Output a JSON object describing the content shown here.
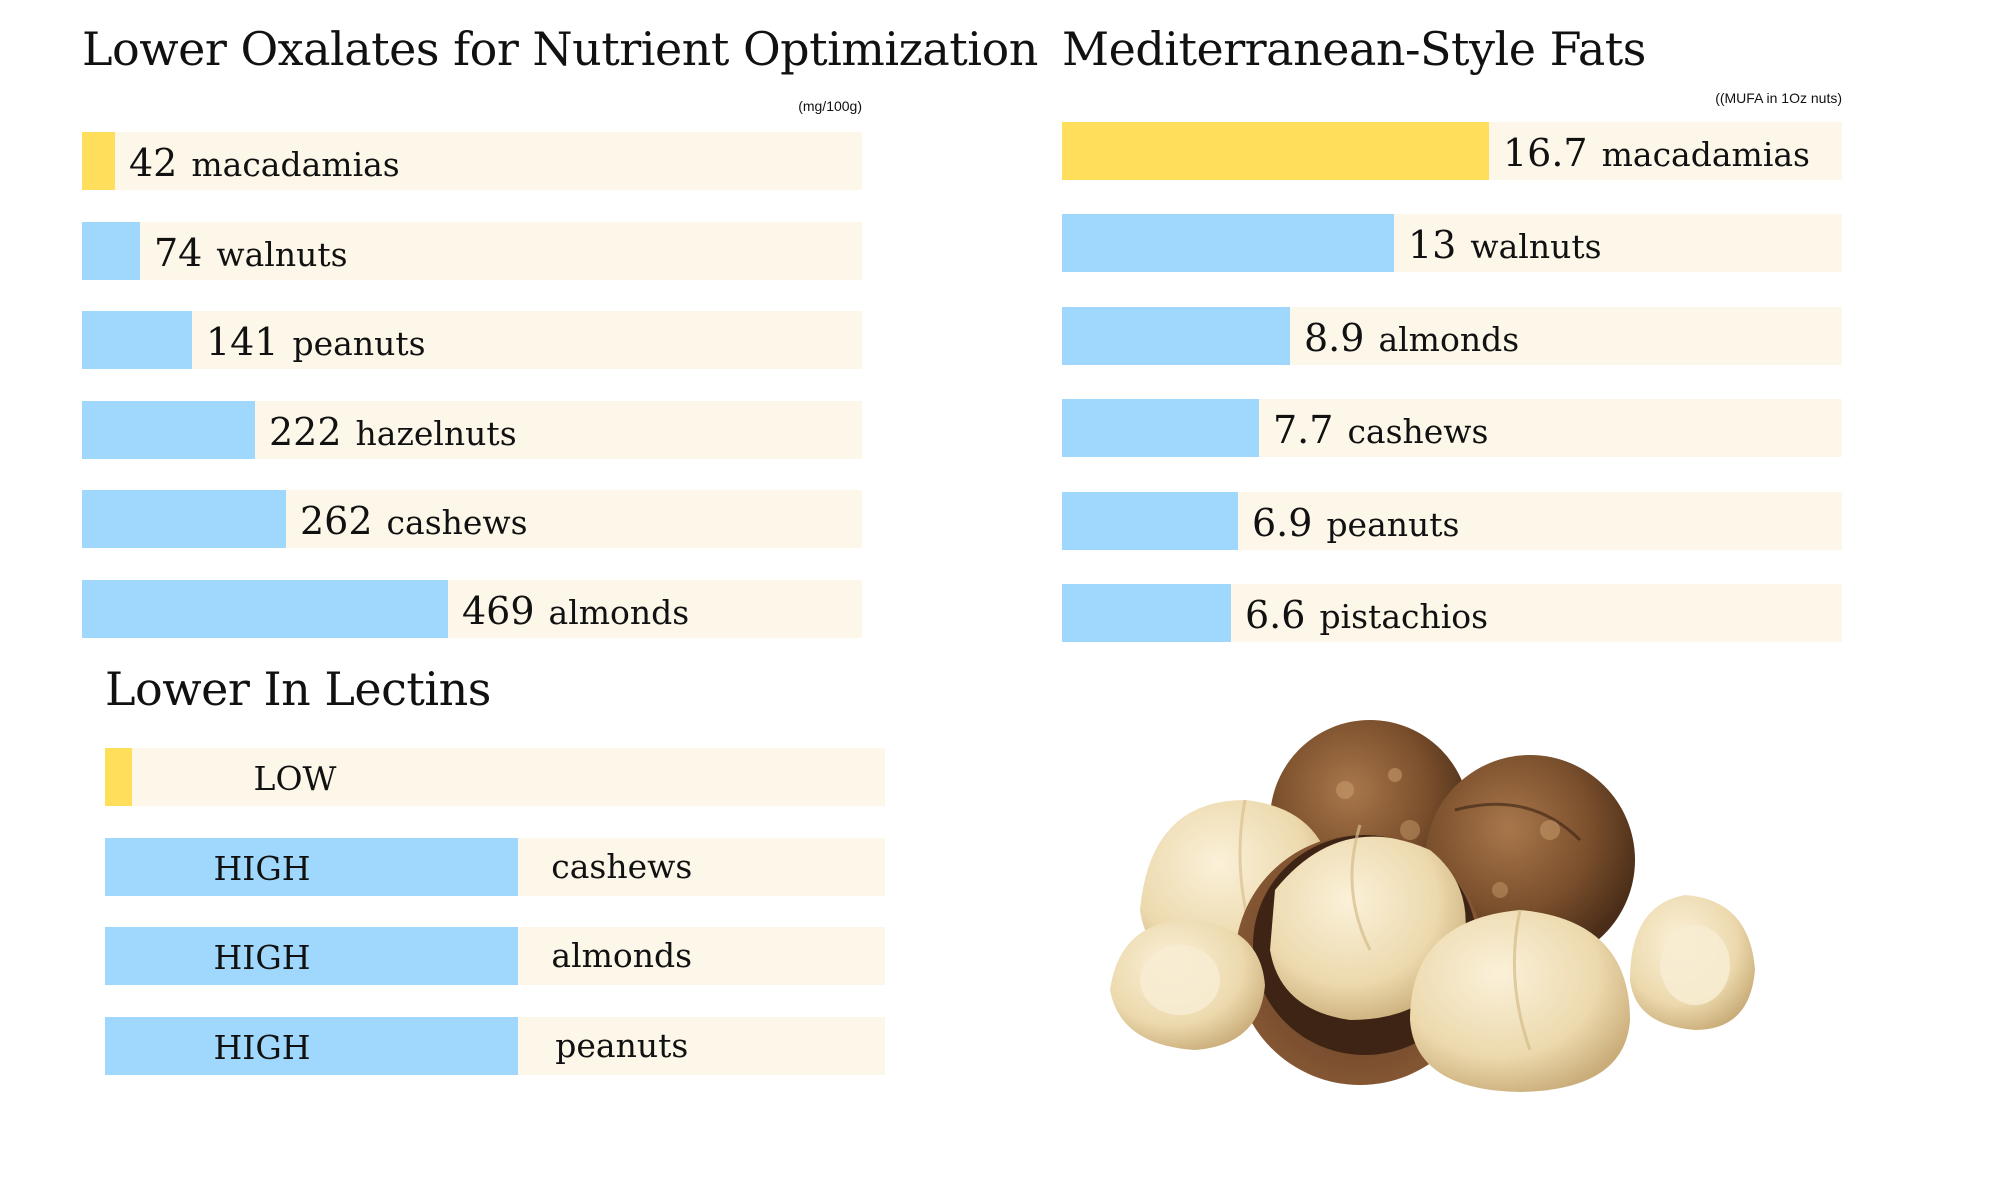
{
  "colors": {
    "highlight": "#ffde5c",
    "bar": "#a0d8fd",
    "track": "#fdf7ea"
  },
  "chart_data": [
    {
      "type": "bar",
      "title": "Lower Oxalates for Nutrient Optimization",
      "unit_label": "(mg/100g)",
      "categories": [
        "macadamias",
        "walnuts",
        "peanuts",
        "hazelnuts",
        "cashews",
        "almonds"
      ],
      "values": [
        42,
        74,
        141,
        222,
        262,
        469
      ],
      "value_labels": [
        "42",
        "74",
        "141",
        "222",
        "262",
        "469"
      ],
      "xlim": [
        0,
        1000
      ],
      "highlight_index": 0
    },
    {
      "type": "bar",
      "title": "Mediterranean-Style Fats",
      "unit_label": "((MUFA in 1Oz nuts)",
      "categories": [
        "macadamias",
        "walnuts",
        "almonds",
        "cashews",
        "peanuts",
        "pistachios"
      ],
      "values": [
        16.7,
        13,
        8.9,
        7.7,
        6.9,
        6.6
      ],
      "value_labels": [
        "16.7",
        "13",
        "8.9",
        "7.7",
        "6.9",
        "6.6"
      ],
      "xlim": [
        0,
        30.5
      ],
      "highlight_index": 0
    },
    {
      "type": "bar",
      "title": "Lower In Lectins",
      "rows": [
        {
          "level": "LOW",
          "nut": "",
          "level_fraction": 0.035
        },
        {
          "level": "HIGH",
          "nut": "cashews",
          "level_fraction": 0.53
        },
        {
          "level": "HIGH",
          "nut": "almonds",
          "level_fraction": 0.53
        },
        {
          "level": "HIGH",
          "nut": "peanuts",
          "level_fraction": 0.53
        }
      ],
      "highlight_index": 0
    }
  ],
  "image": {
    "icon": "macadamia-nuts-photo"
  }
}
